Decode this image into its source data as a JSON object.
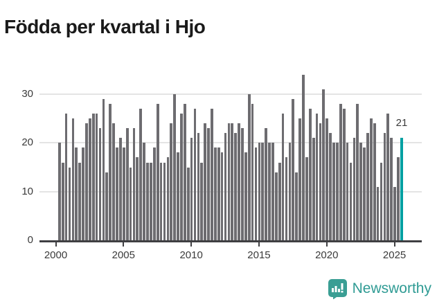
{
  "title": "Födda per kvartal i Hjo",
  "footer": {
    "brand": "Newsworthy"
  },
  "colors": {
    "bar": "#6d6c70",
    "highlight": "#00a0a2",
    "gridline": "#e4e4e4",
    "axis": "#3f3f42",
    "label": "#3a3a3a",
    "brand": "#2f9b94",
    "brand_icon": "#3a9e94"
  },
  "chart_data": {
    "type": "bar",
    "title": "Födda per kvartal i Hjo",
    "xlabel": "",
    "ylabel": "",
    "start_quarter": "2000 Q1",
    "end_quarter": "2025 Q2",
    "quarters_per_year": 4,
    "start_year": 2000,
    "values": [
      20,
      16,
      26,
      15,
      25,
      19,
      16,
      19,
      24,
      25,
      26,
      26,
      23,
      29,
      14,
      28,
      24,
      19,
      21,
      19,
      23,
      15,
      23,
      17,
      27,
      20,
      16,
      16,
      19,
      28,
      16,
      16,
      17,
      24,
      30,
      18,
      26,
      28,
      15,
      21,
      27,
      22,
      16,
      24,
      23,
      27,
      19,
      19,
      18,
      22,
      24,
      24,
      22,
      24,
      23,
      18,
      30,
      28,
      19,
      20,
      20,
      23,
      20,
      20,
      14,
      16,
      26,
      17,
      20,
      29,
      14,
      25,
      34,
      17,
      27,
      21,
      26,
      24,
      31,
      25,
      22,
      20,
      20,
      28,
      27,
      20,
      16,
      21,
      28,
      20,
      19,
      22,
      25,
      24,
      11,
      16,
      22,
      26,
      21,
      11,
      17,
      21
    ],
    "highlight": {
      "index": 101,
      "label": "21"
    },
    "y_ticks": [
      0,
      10,
      20,
      30
    ],
    "x_ticks": [
      2000,
      2005,
      2010,
      2015,
      2020,
      2025
    ],
    "ylim": [
      0,
      34.4
    ],
    "grid": true,
    "legend": false
  }
}
